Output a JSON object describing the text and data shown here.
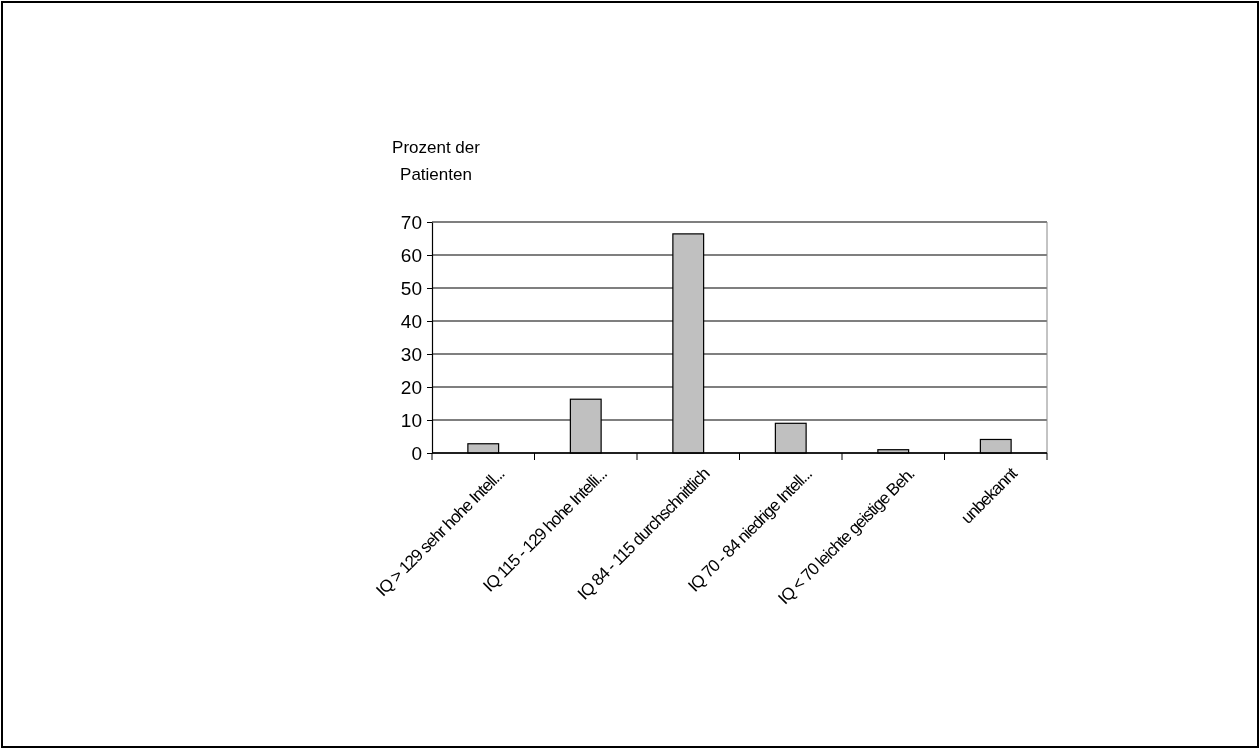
{
  "chart_data": {
    "type": "bar",
    "ylabel": "Prozent der Patienten",
    "categories": [
      "IQ > 129 sehr hohe Intell...",
      "IQ 115 - 129 hohe Intelli...",
      "IQ 84 - 115 durchschnittlich",
      "IQ 70 - 84 niedrige Intell...",
      "IQ < 70 leichte geistige Beh.",
      "unbekannt"
    ],
    "values": [
      2.8,
      16.3,
      66.4,
      9,
      1,
      4.1
    ],
    "color": "#c0c0c0",
    "ylim": [
      0,
      70
    ],
    "yticks": [
      0,
      10,
      20,
      30,
      40,
      50,
      60,
      70
    ],
    "grid": "y"
  }
}
